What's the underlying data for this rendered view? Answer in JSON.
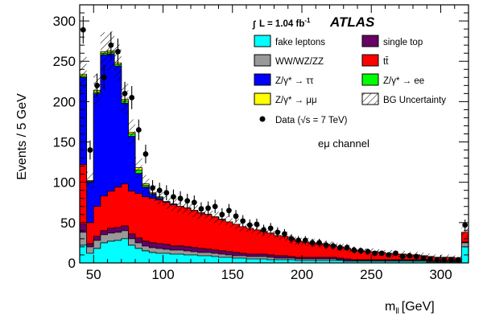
{
  "chart_data": {
    "type": "area",
    "experiment": "ATLAS",
    "lumi_label": "L = 1.04 fb",
    "lumi_unit_sup": "-1",
    "channel_label": "eμ channel",
    "xlabel": "m",
    "xlabel_sub": "ll",
    "xlabel_unit": "[GeV]",
    "ylabel": "Events / 5 GeV",
    "xlim": [
      40,
      320
    ],
    "ylim": [
      0,
      320
    ],
    "x_ticks": [
      50,
      100,
      150,
      200,
      250,
      300
    ],
    "y_ticks": [
      0,
      50,
      100,
      150,
      200,
      250,
      300
    ],
    "bin_width": 5,
    "bins_low_edge": [
      40,
      45,
      50,
      55,
      60,
      65,
      70,
      75,
      80,
      85,
      90,
      95,
      100,
      105,
      110,
      115,
      120,
      125,
      130,
      135,
      140,
      145,
      150,
      155,
      160,
      165,
      170,
      175,
      180,
      185,
      190,
      195,
      200,
      205,
      210,
      215,
      220,
      225,
      230,
      235,
      240,
      245,
      250,
      255,
      260,
      265,
      270,
      275,
      280,
      285,
      290,
      295,
      300,
      305,
      310,
      315
    ],
    "colors": {
      "fake": "#00ffff",
      "diboson": "#999999",
      "ttbar": "#ff0000",
      "ztautau": "#0000ff",
      "zee": "#00ff00",
      "zmumu": "#ffff00",
      "singletop": "#660066"
    },
    "series": [
      {
        "key": "fake",
        "values": [
          22,
          12,
          18,
          25,
          27,
          28,
          30,
          22,
          18,
          15,
          13,
          12,
          12,
          11,
          11,
          10,
          10,
          9,
          9,
          8,
          7,
          7,
          6,
          6,
          5,
          5,
          5,
          4,
          4,
          4,
          4,
          3,
          3,
          3,
          3,
          3,
          3,
          3,
          2,
          2,
          2,
          2,
          2,
          2,
          2,
          2,
          2,
          2,
          2,
          2,
          1,
          1,
          1,
          1,
          1,
          20
        ]
      },
      {
        "key": "diboson",
        "values": [
          16,
          8,
          10,
          10,
          10,
          10,
          10,
          8,
          7,
          6,
          6,
          6,
          5,
          5,
          5,
          5,
          4,
          4,
          4,
          4,
          4,
          3,
          3,
          3,
          3,
          3,
          3,
          3,
          2,
          2,
          2,
          2,
          2,
          2,
          2,
          2,
          2,
          1,
          1,
          1,
          1,
          1,
          1,
          1,
          1,
          1,
          1,
          1,
          1,
          1,
          1,
          1,
          1,
          1,
          1,
          5
        ]
      },
      {
        "key": "singletop",
        "values": [
          10,
          4,
          5,
          5,
          6,
          6,
          6,
          6,
          6,
          6,
          6,
          6,
          6,
          5,
          5,
          5,
          5,
          5,
          4,
          4,
          4,
          4,
          4,
          3,
          3,
          3,
          3,
          3,
          3,
          3,
          2,
          2,
          2,
          2,
          2,
          2,
          2,
          2,
          2,
          1,
          1,
          1,
          1,
          1,
          1,
          1,
          1,
          1,
          1,
          1,
          1,
          1,
          1,
          1,
          1,
          1
        ]
      },
      {
        "key": "ttbar",
        "values": [
          74,
          26,
          37,
          43,
          46,
          50,
          52,
          53,
          55,
          55,
          55,
          54,
          52,
          51,
          49,
          48,
          46,
          44,
          43,
          41,
          39,
          37,
          35,
          33,
          32,
          30,
          28,
          27,
          25,
          24,
          22,
          20,
          19,
          18,
          17,
          16,
          15,
          14,
          13,
          12,
          11,
          10,
          10,
          9,
          8,
          7,
          7,
          6,
          6,
          5,
          5,
          4,
          4,
          4,
          3,
          12
        ]
      },
      {
        "key": "ztautau",
        "values": [
          108,
          50,
          140,
          175,
          170,
          150,
          100,
          68,
          25,
          12,
          5,
          2,
          1,
          1,
          0,
          0,
          0,
          0,
          0,
          0,
          0,
          0,
          0,
          0,
          0,
          0,
          0,
          0,
          0,
          0,
          0,
          0,
          0,
          0,
          0,
          0,
          0,
          0,
          0,
          0,
          0,
          0,
          0,
          0,
          0,
          0,
          0,
          0,
          0,
          0,
          0,
          0,
          0,
          0,
          0,
          0
        ]
      },
      {
        "key": "zee",
        "values": [
          2,
          1,
          2,
          2,
          2,
          2,
          3,
          3,
          4,
          2,
          1,
          1,
          0,
          0,
          0,
          0,
          0,
          0,
          0,
          0,
          0,
          0,
          0,
          0,
          0,
          0,
          0,
          0,
          0,
          0,
          0,
          0,
          0,
          0,
          0,
          0,
          0,
          0,
          0,
          0,
          0,
          0,
          0,
          0,
          0,
          0,
          0,
          0,
          0,
          0,
          0,
          0,
          0,
          0,
          0,
          0
        ]
      },
      {
        "key": "zmumu",
        "values": [
          2,
          1,
          2,
          2,
          2,
          2,
          2,
          2,
          3,
          2,
          1,
          1,
          0,
          0,
          0,
          0,
          0,
          0,
          0,
          0,
          0,
          0,
          0,
          0,
          0,
          0,
          0,
          0,
          0,
          0,
          0,
          0,
          0,
          0,
          0,
          0,
          0,
          0,
          0,
          0,
          0,
          0,
          0,
          0,
          0,
          0,
          0,
          0,
          0,
          0,
          0,
          0,
          0,
          0,
          0,
          0
        ]
      }
    ],
    "uncertainty_frac": 0.08,
    "data_x": [
      42.5,
      47.5,
      52.5,
      57.5,
      62.5,
      67.5,
      72.5,
      77.5,
      82.5,
      87.5,
      92.5,
      97.5,
      102.5,
      107.5,
      112.5,
      117.5,
      122.5,
      127.5,
      132.5,
      137.5,
      142.5,
      147.5,
      152.5,
      157.5,
      162.5,
      167.5,
      172.5,
      177.5,
      182.5,
      187.5,
      192.5,
      197.5,
      202.5,
      207.5,
      212.5,
      217.5,
      222.5,
      227.5,
      232.5,
      237.5,
      242.5,
      247.5,
      252.5,
      257.5,
      262.5,
      267.5,
      272.5,
      277.5,
      282.5,
      287.5,
      292.5,
      297.5,
      302.5,
      307.5,
      312.5,
      317.5
    ],
    "data_y": [
      289,
      140,
      220,
      230,
      270,
      262,
      210,
      205,
      165,
      135,
      93,
      90,
      87,
      82,
      80,
      77,
      75,
      67,
      68,
      70,
      60,
      65,
      58,
      52,
      47,
      48,
      41,
      43,
      38,
      36,
      30,
      28,
      28,
      25,
      25,
      22,
      21,
      19,
      19,
      16,
      15,
      14,
      12,
      12,
      10,
      12,
      8,
      9,
      8,
      6,
      5,
      4,
      4,
      4,
      4,
      47
    ],
    "legend": [
      {
        "key": "fake",
        "label": "fake leptons",
        "kind": "box"
      },
      {
        "key": "singletop",
        "label": "single top",
        "kind": "box"
      },
      {
        "key": "diboson",
        "label": "WW/WZ/ZZ",
        "kind": "box"
      },
      {
        "key": "ttbar",
        "label": "tt̄",
        "kind": "box"
      },
      {
        "key": "ztautau",
        "label": "Z/γ* → ττ",
        "kind": "box"
      },
      {
        "key": "zee",
        "label": "Z/γ* → ee",
        "kind": "box"
      },
      {
        "key": "zmumu",
        "label": "Z/γ* →  μμ",
        "kind": "box"
      },
      {
        "key": "unc",
        "label": "BG Uncertainty",
        "kind": "hatch"
      },
      {
        "key": "data",
        "label": "Data (√s = 7 TeV)",
        "kind": "dot"
      }
    ]
  }
}
